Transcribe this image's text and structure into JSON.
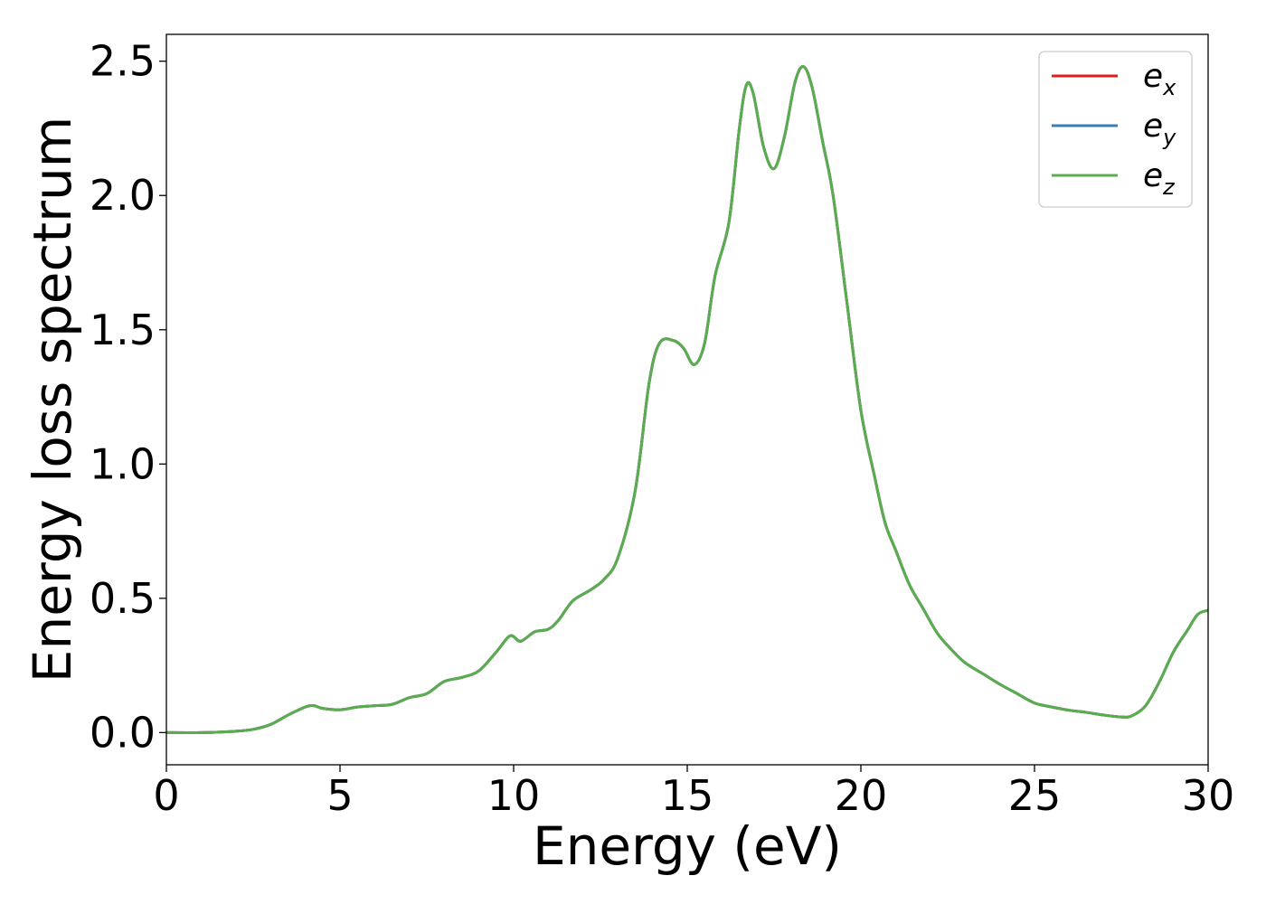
{
  "chart_data": {
    "type": "line",
    "title": "",
    "xlabel": "Energy (eV)",
    "ylabel": "Energy loss spectrum",
    "xlim": [
      0,
      30
    ],
    "ylim": [
      -0.12,
      2.6
    ],
    "xticks": [
      0,
      5,
      10,
      15,
      20,
      25,
      30
    ],
    "yticks": [
      0.0,
      0.5,
      1.0,
      1.5,
      2.0,
      2.5
    ],
    "xtick_labels": [
      "0",
      "5",
      "10",
      "15",
      "20",
      "25",
      "30"
    ],
    "ytick_labels": [
      "0.0",
      "0.5",
      "1.0",
      "1.5",
      "2.0",
      "2.5"
    ],
    "grid": false,
    "legend_position": "top-right",
    "x": [
      0,
      1,
      2,
      2.5,
      3,
      3.5,
      4,
      4.25,
      4.5,
      5,
      5.5,
      6,
      6.5,
      7,
      7.5,
      8,
      8.5,
      9,
      9.5,
      9.9,
      10.2,
      10.6,
      11,
      11.3,
      11.7,
      12.2,
      12.6,
      13,
      13.5,
      13.9,
      14.2,
      14.6,
      14.9,
      15.2,
      15.5,
      15.8,
      16.2,
      16.5,
      16.7,
      16.9,
      17.2,
      17.5,
      17.8,
      18.1,
      18.35,
      18.6,
      18.9,
      19.2,
      19.6,
      20,
      20.4,
      20.7,
      21,
      21.4,
      21.8,
      22.2,
      22.6,
      23,
      23.5,
      24,
      24.5,
      25,
      25.5,
      26,
      26.5,
      27,
      27.5,
      27.8,
      28.2,
      28.6,
      29,
      29.4,
      29.7,
      30
    ],
    "series": [
      {
        "name": "e_x",
        "color": "#e41a1c",
        "y": [
          0.0,
          0.0,
          0.005,
          0.012,
          0.03,
          0.065,
          0.095,
          0.1,
          0.09,
          0.085,
          0.095,
          0.1,
          0.105,
          0.13,
          0.145,
          0.19,
          0.205,
          0.23,
          0.3,
          0.36,
          0.34,
          0.375,
          0.385,
          0.42,
          0.49,
          0.53,
          0.57,
          0.65,
          0.9,
          1.3,
          1.45,
          1.46,
          1.43,
          1.37,
          1.45,
          1.7,
          1.9,
          2.25,
          2.41,
          2.38,
          2.18,
          2.1,
          2.22,
          2.42,
          2.48,
          2.4,
          2.2,
          2.0,
          1.6,
          1.2,
          0.95,
          0.78,
          0.68,
          0.55,
          0.46,
          0.37,
          0.31,
          0.26,
          0.22,
          0.18,
          0.145,
          0.11,
          0.095,
          0.083,
          0.075,
          0.065,
          0.058,
          0.062,
          0.1,
          0.19,
          0.3,
          0.38,
          0.44,
          0.455
        ]
      },
      {
        "name": "e_y",
        "color": "#377eb8",
        "y": [
          0.0,
          0.0,
          0.005,
          0.012,
          0.03,
          0.065,
          0.095,
          0.1,
          0.09,
          0.085,
          0.095,
          0.1,
          0.105,
          0.13,
          0.145,
          0.19,
          0.205,
          0.23,
          0.3,
          0.36,
          0.34,
          0.375,
          0.385,
          0.42,
          0.49,
          0.53,
          0.57,
          0.65,
          0.9,
          1.3,
          1.45,
          1.46,
          1.43,
          1.37,
          1.45,
          1.7,
          1.9,
          2.25,
          2.41,
          2.38,
          2.18,
          2.1,
          2.22,
          2.42,
          2.48,
          2.4,
          2.2,
          2.0,
          1.6,
          1.2,
          0.95,
          0.78,
          0.68,
          0.55,
          0.46,
          0.37,
          0.31,
          0.26,
          0.22,
          0.18,
          0.145,
          0.11,
          0.095,
          0.083,
          0.075,
          0.065,
          0.058,
          0.062,
          0.1,
          0.19,
          0.3,
          0.38,
          0.44,
          0.455
        ]
      },
      {
        "name": "e_z",
        "color": "#5aad4f",
        "y": [
          0.0,
          0.0,
          0.005,
          0.012,
          0.03,
          0.065,
          0.095,
          0.1,
          0.09,
          0.085,
          0.095,
          0.1,
          0.105,
          0.13,
          0.145,
          0.19,
          0.205,
          0.23,
          0.3,
          0.36,
          0.34,
          0.375,
          0.385,
          0.42,
          0.49,
          0.53,
          0.57,
          0.65,
          0.9,
          1.3,
          1.45,
          1.46,
          1.43,
          1.37,
          1.45,
          1.7,
          1.9,
          2.25,
          2.41,
          2.38,
          2.18,
          2.1,
          2.22,
          2.42,
          2.48,
          2.4,
          2.2,
          2.0,
          1.6,
          1.2,
          0.95,
          0.78,
          0.68,
          0.55,
          0.46,
          0.37,
          0.31,
          0.26,
          0.22,
          0.18,
          0.145,
          0.11,
          0.095,
          0.083,
          0.075,
          0.065,
          0.058,
          0.062,
          0.1,
          0.19,
          0.3,
          0.38,
          0.44,
          0.455
        ]
      }
    ],
    "legend": [
      {
        "base": "e",
        "sub": "x",
        "color": "#e41a1c"
      },
      {
        "base": "e",
        "sub": "y",
        "color": "#377eb8"
      },
      {
        "base": "e",
        "sub": "z",
        "color": "#5aad4f"
      }
    ]
  }
}
